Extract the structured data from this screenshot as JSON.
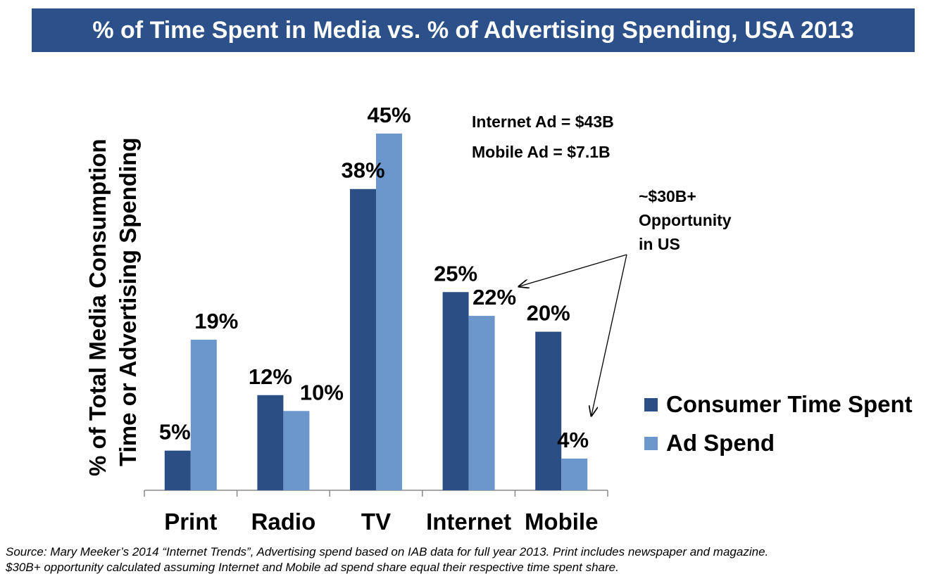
{
  "title": "% of Time Spent in Media vs. % of Advertising Spending, USA 2013",
  "chart_data": {
    "type": "bar",
    "title": "% of Time Spent in Media vs. % of Advertising Spending, USA 2013",
    "categories": [
      "Print",
      "Radio",
      "TV",
      "Internet",
      "Mobile"
    ],
    "series": [
      {
        "name": "Consumer Time Spent",
        "color": "#2b4f84",
        "values": [
          5,
          12,
          38,
          25,
          20
        ],
        "labels": [
          "5%",
          "12%",
          "38%",
          "25%",
          "20%"
        ]
      },
      {
        "name": "Ad Spend",
        "color": "#6b97cc",
        "values": [
          19,
          10,
          45,
          22,
          4
        ],
        "labels": [
          "19%",
          "10%",
          "45%",
          "22%",
          "4%"
        ]
      }
    ],
    "ylabel_line1": "% of Total Media Consumption",
    "ylabel_line2": "Time or Advertising Spending",
    "xlabel": "",
    "ylim": [
      0,
      45
    ],
    "legend_position": "right",
    "grid": false
  },
  "annotations": {
    "internet_ad": "Internet  Ad = $43B",
    "mobile_ad": "Mobile Ad = $7.1B",
    "opportunity_line1": "~$30B+",
    "opportunity_line2": "Opportunity",
    "opportunity_line3": "in US"
  },
  "source_line1": "Source: Mary Meeker’s 2014 “Internet Trends”, Advertising spend based on IAB data for full year 2013. Print includes newspaper and magazine.",
  "source_line2": "$30B+ opportunity calculated  assuming Internet and Mobile ad spend share equal their respective time spent share."
}
